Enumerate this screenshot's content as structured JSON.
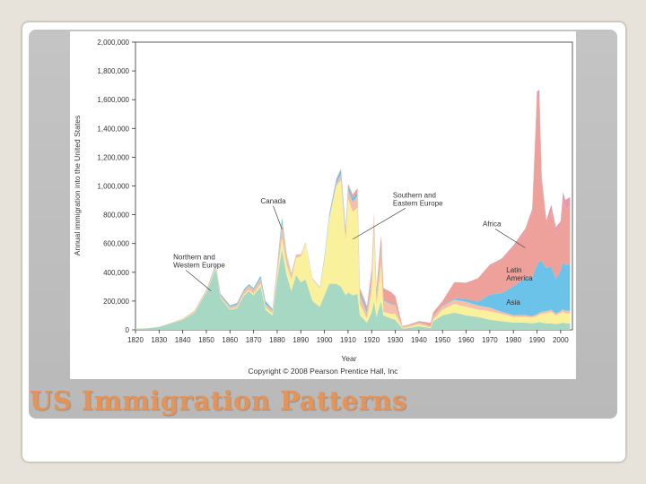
{
  "slide": {
    "title": "US Immigration Patterns",
    "accent_color": "#e59356"
  },
  "chart_data": {
    "type": "area",
    "stacked": true,
    "ylabel": "Annual immigration into the United States",
    "xlabel": "Year",
    "copyright": "Copyright © 2008 Pearson Prentice Hall, Inc",
    "xlim": [
      1820,
      2005
    ],
    "ylim": [
      0,
      2000000
    ],
    "x_ticks": [
      "1820",
      "1830",
      "1840",
      "1850",
      "1860",
      "1870",
      "1880",
      "1890",
      "1900",
      "1910",
      "1920",
      "1930",
      "1940",
      "1950",
      "1960",
      "1970",
      "1980",
      "1990",
      "2000"
    ],
    "y_ticks": [
      "0",
      "200,000",
      "400,000",
      "600,000",
      "800,000",
      "1,000,000",
      "1,200,000",
      "1,400,000",
      "1,600,000",
      "1,800,000",
      "2,000,000"
    ],
    "x": [
      1820,
      1825,
      1830,
      1835,
      1840,
      1845,
      1850,
      1854,
      1856,
      1860,
      1863,
      1866,
      1868,
      1870,
      1873,
      1875,
      1878,
      1880,
      1882,
      1884,
      1886,
      1888,
      1890,
      1892,
      1895,
      1898,
      1900,
      1902,
      1905,
      1907,
      1909,
      1910,
      1912,
      1914,
      1915,
      1918,
      1920,
      1921,
      1922,
      1924,
      1925,
      1928,
      1930,
      1933,
      1935,
      1940,
      1945,
      1946,
      1950,
      1955,
      1960,
      1965,
      1970,
      1975,
      1980,
      1985,
      1988,
      1990,
      1991,
      1992,
      1994,
      1996,
      1998,
      2000,
      2001,
      2002,
      2004
    ],
    "series": [
      {
        "name": "Northern and Western Europe",
        "color": "#a6d8c4",
        "values": [
          8000,
          10000,
          20000,
          45000,
          70000,
          120000,
          260000,
          420000,
          220000,
          140000,
          150000,
          240000,
          270000,
          240000,
          300000,
          140000,
          100000,
          350000,
          560000,
          380000,
          270000,
          380000,
          330000,
          350000,
          200000,
          160000,
          240000,
          320000,
          320000,
          300000,
          240000,
          260000,
          240000,
          250000,
          100000,
          50000,
          120000,
          200000,
          90000,
          200000,
          100000,
          80000,
          70000,
          10000,
          12000,
          25000,
          12000,
          60000,
          100000,
          120000,
          100000,
          90000,
          70000,
          60000,
          50000,
          50000,
          45000,
          50000,
          55000,
          50000,
          45000,
          45000,
          40000,
          45000,
          50000,
          45000,
          45000
        ]
      },
      {
        "name": "Southern and Eastern Europe",
        "color": "#faf19c",
        "values": [
          1000,
          1000,
          1000,
          2000,
          3000,
          4000,
          5000,
          6000,
          5000,
          5000,
          6000,
          8000,
          9000,
          10000,
          20000,
          15000,
          15000,
          30000,
          80000,
          70000,
          80000,
          120000,
          180000,
          250000,
          150000,
          130000,
          250000,
          450000,
          680000,
          740000,
          380000,
          650000,
          580000,
          600000,
          80000,
          30000,
          150000,
          480000,
          80000,
          250000,
          25000,
          30000,
          40000,
          5000,
          5000,
          15000,
          5000,
          10000,
          40000,
          60000,
          60000,
          50000,
          60000,
          50000,
          40000,
          40000,
          40000,
          45000,
          50000,
          60000,
          70000,
          80000,
          60000,
          70000,
          75000,
          70000,
          70000
        ]
      },
      {
        "name": "Canada",
        "color": "#f4c0a8",
        "values": [
          500,
          500,
          1000,
          2000,
          5000,
          10000,
          15000,
          20000,
          15000,
          15000,
          20000,
          25000,
          28000,
          30000,
          35000,
          25000,
          20000,
          60000,
          100000,
          70000,
          40000,
          20000,
          10000,
          5000,
          3000,
          2000,
          5000,
          10000,
          20000,
          40000,
          40000,
          60000,
          70000,
          80000,
          60000,
          40000,
          80000,
          70000,
          50000,
          100000,
          80000,
          70000,
          60000,
          5000,
          10000,
          10000,
          10000,
          20000,
          25000,
          30000,
          35000,
          30000,
          25000,
          15000,
          12000,
          12000,
          11000,
          12000,
          14000,
          15000,
          15000,
          15000,
          13000,
          16000,
          19000,
          18000,
          18000
        ]
      },
      {
        "name": "Asia",
        "color": "#6cc3ea",
        "values": [
          0,
          0,
          0,
          0,
          0,
          0,
          0,
          10000,
          10000,
          10000,
          10000,
          10000,
          10000,
          10000,
          20000,
          20000,
          10000,
          5000,
          40000,
          5000,
          2000,
          2000,
          3000,
          3000,
          3000,
          4000,
          15000,
          20000,
          25000,
          30000,
          30000,
          25000,
          25000,
          25000,
          20000,
          20000,
          20000,
          20000,
          20000,
          15000,
          5000,
          5000,
          5000,
          1000,
          1000,
          1000,
          1000,
          1000,
          5000,
          10000,
          20000,
          25000,
          90000,
          130000,
          200000,
          260000,
          270000,
          340000,
          360000,
          350000,
          300000,
          300000,
          240000,
          280000,
          330000,
          320000,
          320000
        ]
      },
      {
        "name": "Latin America",
        "color": "#eea09a",
        "values": [
          0,
          0,
          0,
          0,
          0,
          0,
          0,
          1000,
          1000,
          1000,
          1000,
          1000,
          1000,
          1000,
          1000,
          1000,
          1000,
          2000,
          2000,
          2000,
          2000,
          2000,
          2000,
          2000,
          2000,
          2000,
          2000,
          3000,
          5000,
          10000,
          15000,
          20000,
          25000,
          30000,
          30000,
          25000,
          50000,
          40000,
          40000,
          90000,
          80000,
          80000,
          60000,
          5000,
          5000,
          10000,
          20000,
          30000,
          30000,
          110000,
          110000,
          160000,
          200000,
          230000,
          270000,
          320000,
          450000,
          1150000,
          1130000,
          550000,
          300000,
          380000,
          320000,
          300000,
          430000,
          390000,
          400000
        ]
      },
      {
        "name": "Africa",
        "color": "#e89aa8",
        "values": [
          0,
          0,
          0,
          0,
          0,
          0,
          0,
          0,
          0,
          0,
          0,
          0,
          0,
          0,
          0,
          0,
          0,
          0,
          0,
          0,
          0,
          0,
          0,
          0,
          0,
          0,
          0,
          0,
          0,
          0,
          0,
          0,
          0,
          0,
          0,
          0,
          0,
          0,
          0,
          0,
          0,
          0,
          0,
          0,
          0,
          0,
          0,
          0,
          1000,
          2000,
          3000,
          4000,
          8000,
          10000,
          15000,
          20000,
          25000,
          60000,
          60000,
          35000,
          30000,
          50000,
          40000,
          45000,
          55000,
          60000,
          70000
        ]
      }
    ],
    "annotations": [
      {
        "text_lines": [
          "Canada"
        ],
        "target": "Canada",
        "target_x": 1882,
        "target_y": 700000,
        "label_x": 1873,
        "label_y": 880000
      },
      {
        "text_lines": [
          "Southern and",
          "Eastern Europe"
        ],
        "target": "Southern and Eastern Europe",
        "target_x": 1912,
        "target_y": 630000,
        "label_x": 1929,
        "label_y": 920000
      },
      {
        "text_lines": [
          "Africa"
        ],
        "target": "Africa",
        "target_x": 1985,
        "target_y": 570000,
        "label_x": 1967,
        "label_y": 720000
      },
      {
        "text_lines": [
          "Northern and",
          "Western Europe"
        ],
        "target": "Northern and Western Europe",
        "target_x": 1852,
        "target_y": 270000,
        "label_x": 1836,
        "label_y": 490000
      },
      {
        "text_lines": [
          "Latin",
          "America"
        ],
        "target": "Latin America",
        "target_x": 1980,
        "target_y": 400000,
        "label_x": 1977,
        "label_y": 400000,
        "no_line": true
      },
      {
        "text_lines": [
          "Asia"
        ],
        "target": "Asia",
        "target_x": 1980,
        "target_y": 170000,
        "label_x": 1977,
        "label_y": 175000,
        "no_line": true
      }
    ]
  }
}
